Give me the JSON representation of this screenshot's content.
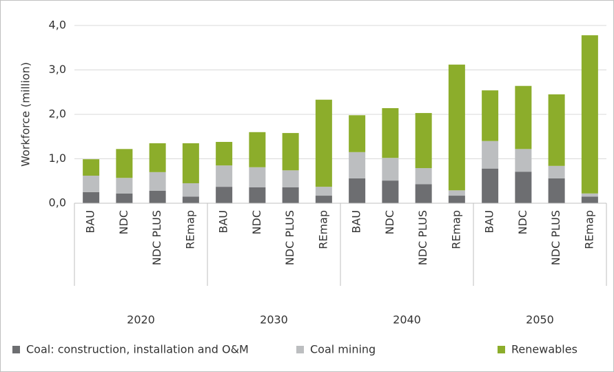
{
  "chart_data": {
    "type": "stacked_bar",
    "y_label": "Workforce (million)",
    "categories": [
      "BAU",
      "NDC",
      "NDC PLUS",
      "REmap",
      "BAU",
      "NDC",
      "NDC PLUS",
      "REmap",
      "BAU",
      "NDC",
      "NDC PLUS",
      "REmap",
      "BAU",
      "NDC",
      "NDC PLUS",
      "REmap"
    ],
    "groups": [
      "2020",
      "2030",
      "2040",
      "2050"
    ],
    "series": [
      {
        "name": "Coal: construction, installation and O&M",
        "color": "#6d6e71",
        "values": [
          0.25,
          0.22,
          0.28,
          0.15,
          0.37,
          0.36,
          0.36,
          0.17,
          0.56,
          0.51,
          0.43,
          0.17,
          0.78,
          0.71,
          0.56,
          0.15
        ]
      },
      {
        "name": "Coal mining",
        "color": "#bcbec0",
        "values": [
          0.37,
          0.35,
          0.42,
          0.3,
          0.48,
          0.45,
          0.38,
          0.2,
          0.59,
          0.51,
          0.36,
          0.12,
          0.62,
          0.51,
          0.28,
          0.07
        ]
      },
      {
        "name": "Renewables",
        "color": "#8cad2b",
        "values": [
          0.37,
          0.65,
          0.65,
          0.9,
          0.53,
          0.79,
          0.84,
          1.96,
          0.83,
          1.12,
          1.24,
          2.83,
          1.14,
          1.42,
          1.61,
          3.56
        ]
      }
    ],
    "ylim": [
      0,
      4
    ],
    "yticks": [
      {
        "value": 0,
        "label": "0,0"
      },
      {
        "value": 1,
        "label": "1,0"
      },
      {
        "value": 2,
        "label": "2,0"
      },
      {
        "value": 3,
        "label": "3,0"
      },
      {
        "value": 4,
        "label": "4,0"
      }
    ],
    "grid": true
  }
}
